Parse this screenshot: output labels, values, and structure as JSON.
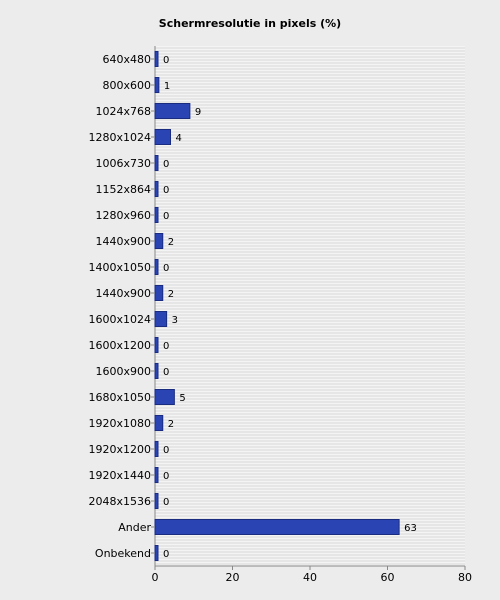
{
  "chart_data": {
    "type": "bar",
    "orientation": "horizontal",
    "title": "Schermresolutie in pixels (%)",
    "xlabel": "",
    "ylabel": "",
    "categories": [
      "640x480",
      "800x600",
      "1024x768",
      "1280x1024",
      "1006x730",
      "1152x864",
      "1280x960",
      "1440x900",
      "1400x1050",
      "1440x900",
      "1600x1024",
      "1600x1200",
      "1600x900",
      "1680x1050",
      "1920x1080",
      "1920x1200",
      "1920x1440",
      "2048x1536",
      "Ander",
      "Onbekend"
    ],
    "values": [
      0,
      1,
      9,
      4,
      0,
      0,
      0,
      2,
      0,
      2,
      3,
      0,
      0,
      5,
      2,
      0,
      0,
      0,
      63,
      0
    ],
    "xlim": [
      0,
      80
    ],
    "xticks": [
      0,
      20,
      40,
      60,
      80
    ],
    "grid": true,
    "legend": "none",
    "colors": {
      "bar": "#2a44b4",
      "bar_edge": "#1a2c80",
      "plot_bg": "#f4f4f4",
      "grid": "#d9d9d9",
      "page_bg": "#ececec"
    }
  }
}
